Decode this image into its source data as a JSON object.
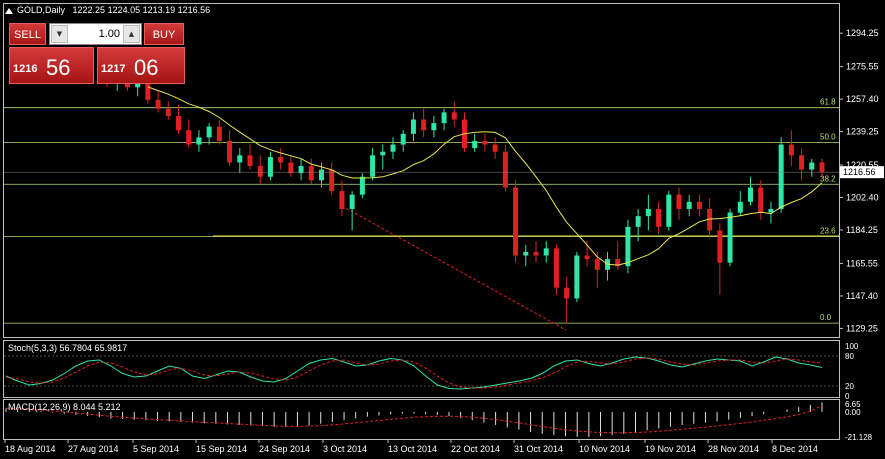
{
  "header": {
    "symbol_timeframe": "GOLD,Daily",
    "ohlc": "1222.25 1224.05 1213.19 1216.56"
  },
  "trade_panel": {
    "sell_label": "SELL",
    "buy_label": "BUY",
    "lot_value": "1.00",
    "bid_small": "1216",
    "bid_big": "56",
    "ask_small": "1217",
    "ask_big": "06"
  },
  "price_axis": {
    "ticks": [
      "1294.25",
      "1275.55",
      "1257.40",
      "1239.25",
      "1220.55",
      "1202.40",
      "1184.25",
      "1165.55",
      "1147.40",
      "1129.25"
    ],
    "current_price": "1216.56"
  },
  "fibonacci": {
    "levels": [
      {
        "label": "61.8",
        "price": 1252.6
      },
      {
        "label": "50.0",
        "price": 1233.2
      },
      {
        "label": "38.2",
        "price": 1209.8
      },
      {
        "label": "23.6",
        "price": 1180.6
      },
      {
        "label": "0.0",
        "price": 1132.2
      }
    ]
  },
  "stochastic": {
    "title": "Stoch(5,3,3) 56.7804 65.9817",
    "levels": [
      "100",
      "80",
      "20",
      "0"
    ]
  },
  "macd": {
    "title": "MACD(12,26,9) 8.044 5.212",
    "levels": [
      "6.65",
      "0.00",
      "-21.128"
    ]
  },
  "time_axis": {
    "labels": [
      "18 Aug 2014",
      "27 Aug 2014",
      "5 Sep 2014",
      "15 Sep 2014",
      "24 Sep 2014",
      "3 Oct 2014",
      "13 Oct 2014",
      "22 Oct 2014",
      "31 Oct 2014",
      "10 Nov 2014",
      "19 Nov 2014",
      "28 Nov 2014",
      "8 Dec 2014"
    ]
  },
  "colors": {
    "bull": "#2ee6a8",
    "bear": "#e02020",
    "ma": "#e8e850",
    "fib": "#b8e070",
    "stoch_main": "#2ee6a8",
    "stoch_signal": "#e02020"
  },
  "chart_data": {
    "type": "candlestick",
    "y_range": [
      1125,
      1310
    ],
    "candles": [
      {
        "o": 1270,
        "h": 1274,
        "l": 1264,
        "c": 1266
      },
      {
        "o": 1266,
        "h": 1271,
        "l": 1262,
        "c": 1268
      },
      {
        "o": 1268,
        "h": 1272,
        "l": 1262,
        "c": 1264
      },
      {
        "o": 1264,
        "h": 1270,
        "l": 1259,
        "c": 1266
      },
      {
        "o": 1266,
        "h": 1268,
        "l": 1255,
        "c": 1257
      },
      {
        "o": 1257,
        "h": 1262,
        "l": 1250,
        "c": 1252
      },
      {
        "o": 1252,
        "h": 1256,
        "l": 1246,
        "c": 1248
      },
      {
        "o": 1248,
        "h": 1254,
        "l": 1238,
        "c": 1240
      },
      {
        "o": 1240,
        "h": 1246,
        "l": 1230,
        "c": 1232
      },
      {
        "o": 1232,
        "h": 1240,
        "l": 1228,
        "c": 1236
      },
      {
        "o": 1236,
        "h": 1244,
        "l": 1232,
        "c": 1242
      },
      {
        "o": 1242,
        "h": 1246,
        "l": 1232,
        "c": 1234
      },
      {
        "o": 1234,
        "h": 1240,
        "l": 1220,
        "c": 1222
      },
      {
        "o": 1222,
        "h": 1230,
        "l": 1216,
        "c": 1226
      },
      {
        "o": 1226,
        "h": 1232,
        "l": 1218,
        "c": 1220
      },
      {
        "o": 1220,
        "h": 1226,
        "l": 1210,
        "c": 1214
      },
      {
        "o": 1214,
        "h": 1228,
        "l": 1212,
        "c": 1225
      },
      {
        "o": 1225,
        "h": 1230,
        "l": 1218,
        "c": 1222
      },
      {
        "o": 1222,
        "h": 1226,
        "l": 1214,
        "c": 1216
      },
      {
        "o": 1216,
        "h": 1224,
        "l": 1212,
        "c": 1220
      },
      {
        "o": 1220,
        "h": 1224,
        "l": 1210,
        "c": 1212
      },
      {
        "o": 1212,
        "h": 1222,
        "l": 1208,
        "c": 1218
      },
      {
        "o": 1218,
        "h": 1222,
        "l": 1204,
        "c": 1206
      },
      {
        "o": 1206,
        "h": 1212,
        "l": 1192,
        "c": 1196
      },
      {
        "o": 1196,
        "h": 1206,
        "l": 1184,
        "c": 1204
      },
      {
        "o": 1204,
        "h": 1216,
        "l": 1202,
        "c": 1214
      },
      {
        "o": 1214,
        "h": 1230,
        "l": 1212,
        "c": 1226
      },
      {
        "o": 1226,
        "h": 1232,
        "l": 1218,
        "c": 1228
      },
      {
        "o": 1228,
        "h": 1236,
        "l": 1224,
        "c": 1232
      },
      {
        "o": 1232,
        "h": 1240,
        "l": 1228,
        "c": 1238
      },
      {
        "o": 1238,
        "h": 1250,
        "l": 1234,
        "c": 1246
      },
      {
        "o": 1246,
        "h": 1252,
        "l": 1236,
        "c": 1240
      },
      {
        "o": 1240,
        "h": 1248,
        "l": 1236,
        "c": 1244
      },
      {
        "o": 1244,
        "h": 1252,
        "l": 1240,
        "c": 1250
      },
      {
        "o": 1250,
        "h": 1256,
        "l": 1242,
        "c": 1246
      },
      {
        "o": 1246,
        "h": 1250,
        "l": 1228,
        "c": 1230
      },
      {
        "o": 1230,
        "h": 1238,
        "l": 1228,
        "c": 1234
      },
      {
        "o": 1234,
        "h": 1238,
        "l": 1228,
        "c": 1232
      },
      {
        "o": 1232,
        "h": 1236,
        "l": 1224,
        "c": 1228
      },
      {
        "o": 1228,
        "h": 1232,
        "l": 1206,
        "c": 1208
      },
      {
        "o": 1208,
        "h": 1212,
        "l": 1166,
        "c": 1170
      },
      {
        "o": 1170,
        "h": 1176,
        "l": 1164,
        "c": 1172
      },
      {
        "o": 1172,
        "h": 1178,
        "l": 1166,
        "c": 1170
      },
      {
        "o": 1170,
        "h": 1178,
        "l": 1166,
        "c": 1174
      },
      {
        "o": 1174,
        "h": 1176,
        "l": 1148,
        "c": 1152
      },
      {
        "o": 1152,
        "h": 1158,
        "l": 1132,
        "c": 1146
      },
      {
        "o": 1146,
        "h": 1172,
        "l": 1144,
        "c": 1170
      },
      {
        "o": 1170,
        "h": 1178,
        "l": 1164,
        "c": 1168
      },
      {
        "o": 1168,
        "h": 1172,
        "l": 1152,
        "c": 1162
      },
      {
        "o": 1162,
        "h": 1172,
        "l": 1156,
        "c": 1168
      },
      {
        "o": 1168,
        "h": 1178,
        "l": 1162,
        "c": 1164
      },
      {
        "o": 1164,
        "h": 1190,
        "l": 1160,
        "c": 1186
      },
      {
        "o": 1186,
        "h": 1196,
        "l": 1178,
        "c": 1192
      },
      {
        "o": 1192,
        "h": 1204,
        "l": 1184,
        "c": 1196
      },
      {
        "o": 1196,
        "h": 1200,
        "l": 1182,
        "c": 1186
      },
      {
        "o": 1186,
        "h": 1206,
        "l": 1184,
        "c": 1204
      },
      {
        "o": 1204,
        "h": 1208,
        "l": 1190,
        "c": 1196
      },
      {
        "o": 1196,
        "h": 1204,
        "l": 1192,
        "c": 1200
      },
      {
        "o": 1200,
        "h": 1204,
        "l": 1192,
        "c": 1196
      },
      {
        "o": 1196,
        "h": 1202,
        "l": 1180,
        "c": 1184
      },
      {
        "o": 1184,
        "h": 1188,
        "l": 1148,
        "c": 1166
      },
      {
        "o": 1166,
        "h": 1196,
        "l": 1164,
        "c": 1194
      },
      {
        "o": 1194,
        "h": 1206,
        "l": 1192,
        "c": 1200
      },
      {
        "o": 1200,
        "h": 1214,
        "l": 1198,
        "c": 1208
      },
      {
        "o": 1208,
        "h": 1212,
        "l": 1190,
        "c": 1194
      },
      {
        "o": 1194,
        "h": 1200,
        "l": 1188,
        "c": 1196
      },
      {
        "o": 1196,
        "h": 1236,
        "l": 1194,
        "c": 1232
      },
      {
        "o": 1232,
        "h": 1240,
        "l": 1220,
        "c": 1226
      },
      {
        "o": 1226,
        "h": 1230,
        "l": 1212,
        "c": 1218
      },
      {
        "o": 1218,
        "h": 1224,
        "l": 1214,
        "c": 1222
      },
      {
        "o": 1222,
        "h": 1224,
        "l": 1213,
        "c": 1216.56
      }
    ],
    "stoch_main": [
      40,
      30,
      22,
      25,
      32,
      45,
      60,
      70,
      72,
      60,
      45,
      38,
      40,
      50,
      60,
      55,
      40,
      35,
      42,
      50,
      48,
      38,
      30,
      28,
      35,
      50,
      65,
      72,
      75,
      68,
      60,
      62,
      70,
      75,
      72,
      60,
      40,
      22,
      15,
      14,
      16,
      18,
      22,
      26,
      30,
      35,
      45,
      60,
      70,
      72,
      65,
      60,
      66,
      74,
      78,
      76,
      70,
      62,
      58,
      64,
      70,
      74,
      72,
      70,
      60,
      68,
      78,
      74,
      66,
      62,
      57
    ],
    "stoch_signal": [
      38,
      34,
      28,
      26,
      28,
      36,
      48,
      60,
      68,
      66,
      58,
      48,
      42,
      44,
      52,
      56,
      50,
      42,
      40,
      44,
      48,
      46,
      40,
      34,
      32,
      38,
      50,
      62,
      70,
      72,
      66,
      62,
      64,
      70,
      72,
      68,
      56,
      40,
      26,
      18,
      16,
      16,
      18,
      22,
      26,
      30,
      36,
      46,
      58,
      68,
      70,
      66,
      64,
      68,
      74,
      76,
      74,
      68,
      64,
      62,
      66,
      70,
      72,
      72,
      68,
      66,
      70,
      74,
      72,
      68,
      66
    ],
    "macd_values": [
      3,
      2.5,
      1.5,
      0.5,
      -0.5,
      -1.5,
      -2.5,
      -3.5,
      -4.5,
      -5.5,
      -6,
      -6.5,
      -7,
      -7.5,
      -8,
      -8.5,
      -9,
      -9.5,
      -10,
      -10.5,
      -11,
      -11.5,
      -12,
      -12.5,
      -12.8,
      -12.5,
      -11.5,
      -10,
      -8.5,
      -7,
      -5.5,
      -4,
      -3,
      -2,
      -1.5,
      -1.5,
      -2,
      -2.5,
      -3.5,
      -5,
      -7,
      -9,
      -11,
      -13,
      -15,
      -17,
      -18.5,
      -19.5,
      -20.5,
      -21,
      -21,
      -20.5,
      -19.5,
      -18.5,
      -17,
      -15.5,
      -14,
      -12.5,
      -11,
      -10,
      -9,
      -8,
      -6.5,
      -5,
      -3.5,
      -2,
      0,
      2,
      4,
      6,
      8.044
    ],
    "macd_signal": [
      3,
      2.8,
      2.3,
      1.6,
      0.8,
      0,
      -0.9,
      -1.8,
      -2.8,
      -3.7,
      -4.5,
      -5.2,
      -5.8,
      -6.4,
      -7,
      -7.6,
      -8.2,
      -8.8,
      -9.3,
      -9.8,
      -10.3,
      -10.8,
      -11.3,
      -11.8,
      -12.1,
      -12.2,
      -12,
      -11.6,
      -10.9,
      -10.1,
      -9.2,
      -8.2,
      -7.2,
      -6.2,
      -5.3,
      -4.5,
      -4,
      -3.7,
      -3.6,
      -3.9,
      -4.5,
      -5.4,
      -6.5,
      -7.8,
      -9.2,
      -10.8,
      -12.3,
      -13.7,
      -15,
      -16.1,
      -16.8,
      -17.3,
      -17.5,
      -17.5,
      -17.3,
      -16.9,
      -16.3,
      -15.5,
      -14.6,
      -13.7,
      -12.8,
      -11.8,
      -10.8,
      -9.6,
      -8.4,
      -7.1,
      -5.6,
      -4,
      -2.2,
      0.5,
      5.212
    ]
  }
}
